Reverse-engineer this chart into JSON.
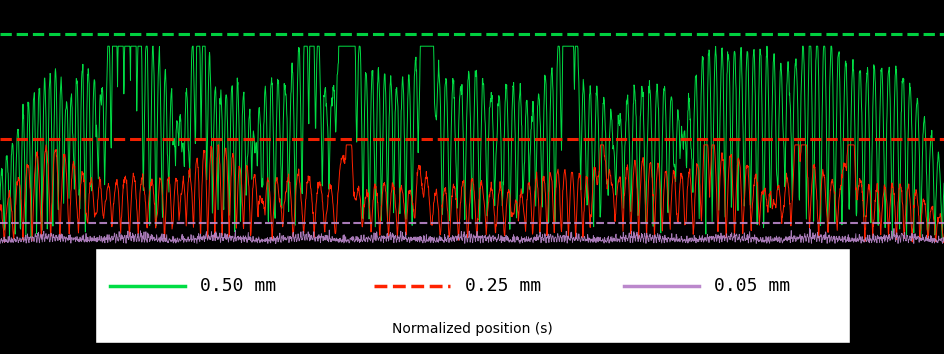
{
  "bg_color": "#000000",
  "fig_bg_color": "#000000",
  "outer_bg_color": "#000000",
  "line_green_color": "#00dd44",
  "line_red_color": "#ff2200",
  "line_purple_color": "#bb88cc",
  "tol_green": 0.5,
  "tol_red": 0.25,
  "tol_purple": 0.05,
  "legend_labels": [
    "0.50 mm",
    "0.25 mm",
    "0.05 mm"
  ],
  "legend_bg": "#ffffff",
  "legend_text_color": "#000000",
  "xlabel": "Normalized position (s)",
  "n_points": 3000,
  "x_max": 270,
  "ylim_min": -0.01,
  "ylim_max": 0.58,
  "seed": 7
}
